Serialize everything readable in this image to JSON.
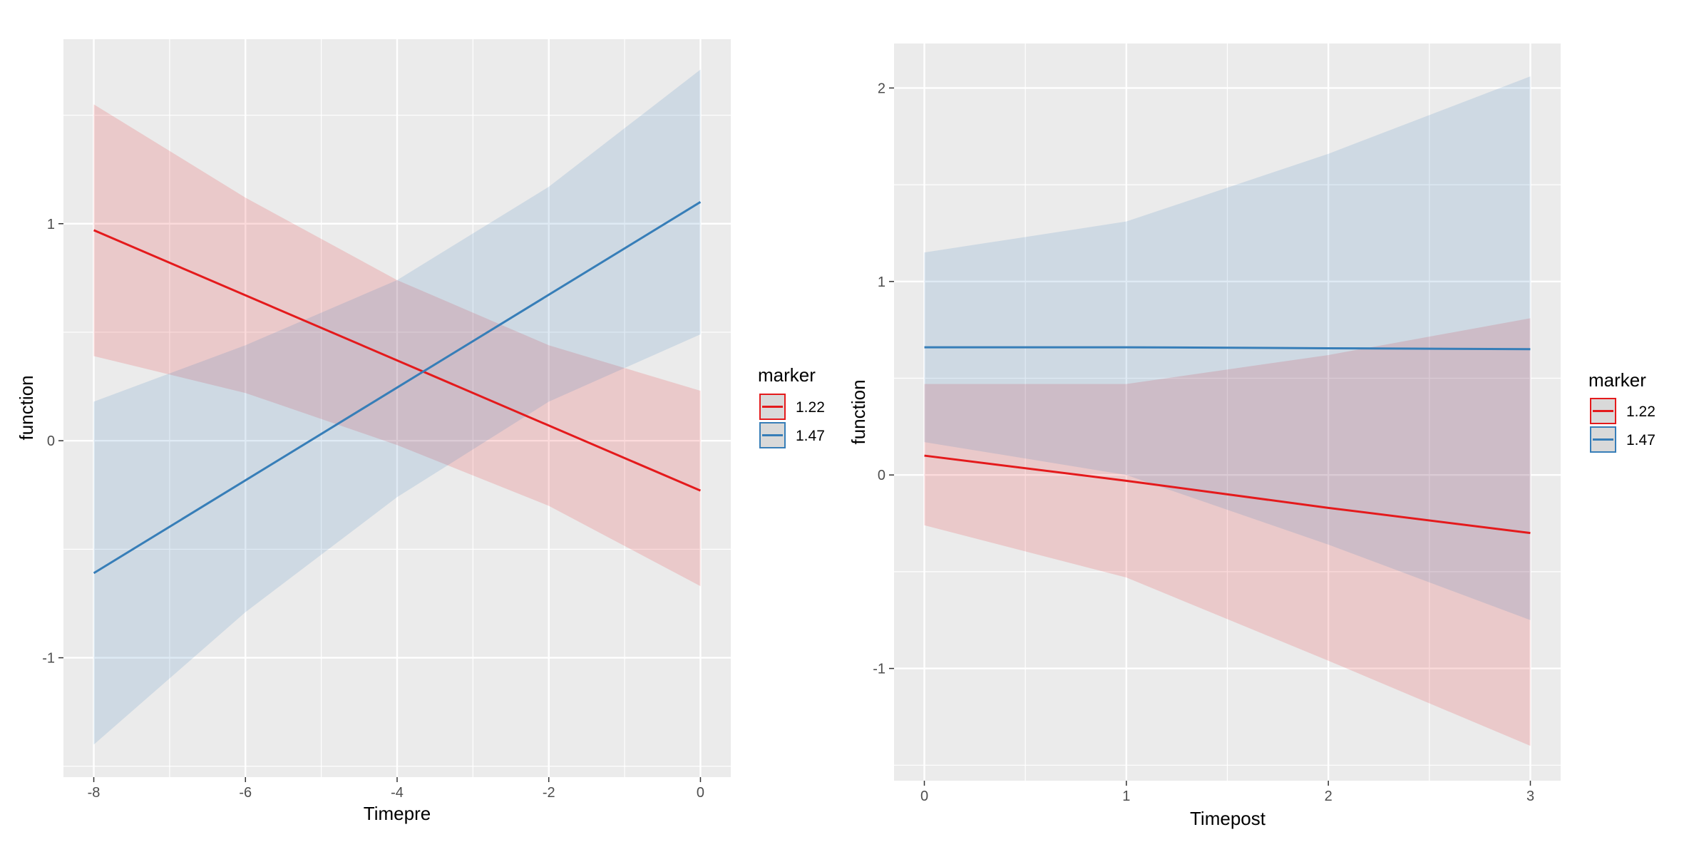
{
  "chart_data": [
    {
      "type": "line",
      "title": "",
      "xlabel": "Timepre",
      "ylabel": "function",
      "xlim": [
        -8.4,
        0.4
      ],
      "ylim": [
        -1.55,
        1.85
      ],
      "xticks": [
        -8,
        -6,
        -4,
        -2,
        0
      ],
      "xtick_labels": [
        "-8",
        "-6",
        "-4",
        "-2",
        "0"
      ],
      "yticks": [
        -1,
        0,
        1
      ],
      "ytick_labels": [
        "-1",
        "0",
        "1"
      ],
      "grid": true,
      "legend": {
        "title": "marker",
        "position": "right",
        "entries": [
          "1.22",
          "1.47"
        ]
      },
      "series": [
        {
          "name": "1.22",
          "color": "#E41A1C",
          "x": [
            -8,
            0
          ],
          "y": [
            0.97,
            -0.23
          ],
          "ribbon_x": [
            -8,
            -6,
            -4,
            -2,
            0
          ],
          "ribbon_lower": [
            0.39,
            0.22,
            -0.02,
            -0.3,
            -0.67
          ],
          "ribbon_upper": [
            1.55,
            1.12,
            0.74,
            0.44,
            0.23
          ]
        },
        {
          "name": "1.47",
          "color": "#377EB8",
          "x": [
            -8,
            0
          ],
          "y": [
            -0.61,
            1.1
          ],
          "ribbon_x": [
            -8,
            -6,
            -4,
            -2,
            0
          ],
          "ribbon_lower": [
            -1.4,
            -0.79,
            -0.26,
            0.18,
            0.49
          ],
          "ribbon_upper": [
            0.18,
            0.44,
            0.74,
            1.17,
            1.71
          ]
        }
      ]
    },
    {
      "type": "line",
      "title": "",
      "xlabel": "Timepost",
      "ylabel": "function",
      "xlim": [
        -0.15,
        3.15
      ],
      "ylim": [
        -1.58,
        2.23
      ],
      "xticks": [
        0,
        1,
        2,
        3
      ],
      "xtick_labels": [
        "0",
        "1",
        "2",
        "3"
      ],
      "yticks": [
        -1,
        0,
        1,
        2
      ],
      "ytick_labels": [
        "-1",
        "0",
        "1",
        "2"
      ],
      "grid": true,
      "legend": {
        "title": "marker",
        "position": "right",
        "entries": [
          "1.22",
          "1.47"
        ]
      },
      "series": [
        {
          "name": "1.22",
          "color": "#E41A1C",
          "x": [
            0,
            1,
            2,
            3
          ],
          "y": [
            0.1,
            -0.03,
            -0.17,
            -0.3
          ],
          "ribbon_x": [
            0,
            1,
            2,
            3
          ],
          "ribbon_lower": [
            -0.26,
            -0.53,
            -0.96,
            -1.4
          ],
          "ribbon_upper": [
            0.47,
            0.47,
            0.62,
            0.81
          ]
        },
        {
          "name": "1.47",
          "color": "#377EB8",
          "x": [
            0,
            1,
            2,
            3
          ],
          "y": [
            0.66,
            0.66,
            0.655,
            0.65
          ],
          "ribbon_x": [
            0,
            1,
            2,
            3
          ],
          "ribbon_lower": [
            0.17,
            0.0,
            -0.36,
            -0.75
          ],
          "ribbon_upper": [
            1.15,
            1.31,
            1.66,
            2.06
          ]
        }
      ]
    }
  ]
}
